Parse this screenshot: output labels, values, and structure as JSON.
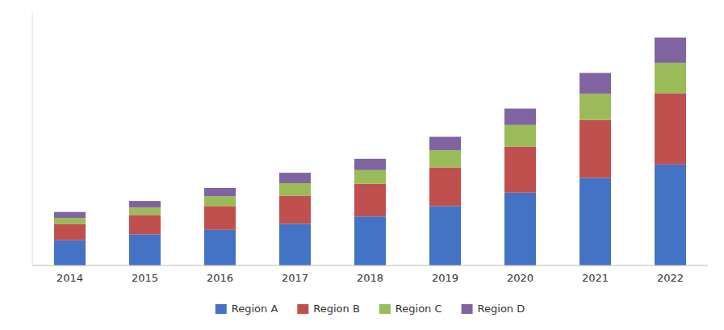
{
  "chart_data": {
    "type": "bar",
    "stacked": true,
    "categories": [
      "2014",
      "2015",
      "2016",
      "2017",
      "2018",
      "2019",
      "2020",
      "2021",
      "2022"
    ],
    "series": [
      {
        "name": "Region A",
        "color": "#4472C4",
        "values": [
          85,
          105,
          120,
          140,
          165,
          200,
          245,
          295,
          340
        ]
      },
      {
        "name": "Region B",
        "color": "#C0504D",
        "values": [
          55,
          65,
          80,
          95,
          110,
          130,
          155,
          195,
          240
        ]
      },
      {
        "name": "Region C",
        "color": "#9BBB59",
        "values": [
          20,
          25,
          33,
          42,
          46,
          58,
          73,
          88,
          102
        ]
      },
      {
        "name": "Region D",
        "color": "#8064A2",
        "values": [
          20,
          22,
          28,
          35,
          38,
          45,
          55,
          70,
          85
        ]
      }
    ],
    "ylim": [
      0,
      850
    ],
    "tick_labels": "x",
    "grid": false,
    "legend": "bottom"
  }
}
